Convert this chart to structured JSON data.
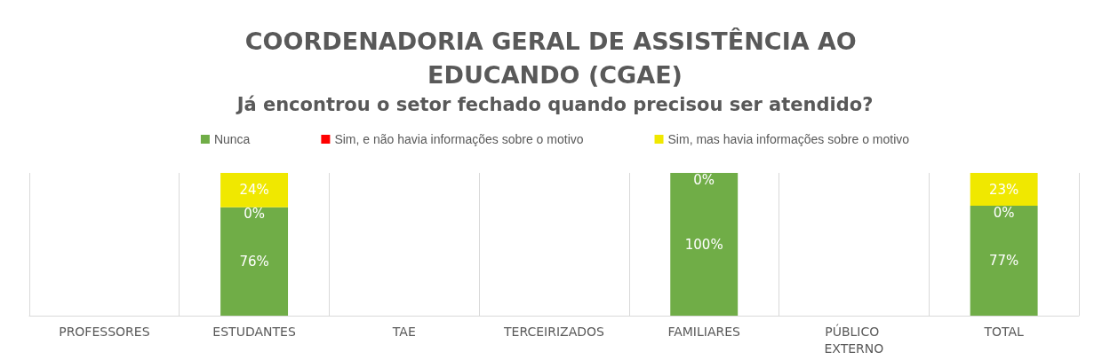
{
  "chart_data": {
    "type": "bar",
    "title": "COORDENADORIA GERAL DE ASSISTÊNCIA AO EDUCANDO (CGAE)",
    "subtitle": "Já encontrou o setor fechado quando precisou ser atendido?",
    "categories": [
      "PROFESSORES",
      "ESTUDANTES",
      "TAE",
      "TERCEIRIZADOS",
      "FAMILIARES",
      "PÚBLICO EXTERNO",
      "TOTAL"
    ],
    "stacked": true,
    "ylim": [
      0,
      100
    ],
    "tick_labels": "x",
    "grid": "x",
    "legend": "top",
    "series": [
      {
        "name": "Nunca",
        "color": "#70ad47",
        "values": [
          null,
          76,
          null,
          null,
          100,
          null,
          77
        ],
        "value_labels": [
          null,
          "76%",
          null,
          null,
          "100%",
          null,
          "77%"
        ]
      },
      {
        "name": "Sim, e não havia informações sobre o motivo",
        "color": "#ff0000",
        "values": [
          null,
          0,
          null,
          null,
          0,
          null,
          0
        ],
        "value_labels": [
          null,
          "0%",
          null,
          null,
          "0%",
          null,
          "0%"
        ]
      },
      {
        "name": "Sim, mas havia informações sobre o motivo",
        "color": "#f0e800",
        "values": [
          null,
          24,
          null,
          null,
          0,
          null,
          23
        ],
        "value_labels": [
          null,
          "24%",
          null,
          null,
          null,
          null,
          "23%"
        ]
      }
    ]
  }
}
